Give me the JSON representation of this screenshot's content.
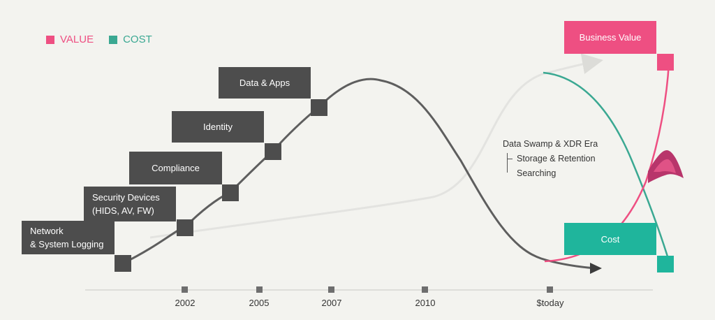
{
  "legend": [
    {
      "label": "VALUE",
      "color": "#ee4f82"
    },
    {
      "label": "COST",
      "color": "#3aa892"
    }
  ],
  "stages": [
    {
      "label": "Network\n& System Logging"
    },
    {
      "label": "Security Devices\n(HIDS, AV, FW)"
    },
    {
      "label": "Compliance"
    },
    {
      "label": "Identity"
    },
    {
      "label": "Data & Apps"
    }
  ],
  "business_value_label": "Business Value",
  "cost_label": "Cost",
  "era": {
    "title": "Data Swamp & XDR Era",
    "items": [
      "Storage & Retention",
      "Searching"
    ]
  },
  "timeline": [
    "2002",
    "2005",
    "2007",
    "2010",
    "$today"
  ],
  "colors": {
    "value": "#ee4f82",
    "cost": "#1fb59c",
    "stage": "#4d4d4d",
    "curve": "#5e5e5e",
    "ghost_curve": "#e2e2df"
  }
}
